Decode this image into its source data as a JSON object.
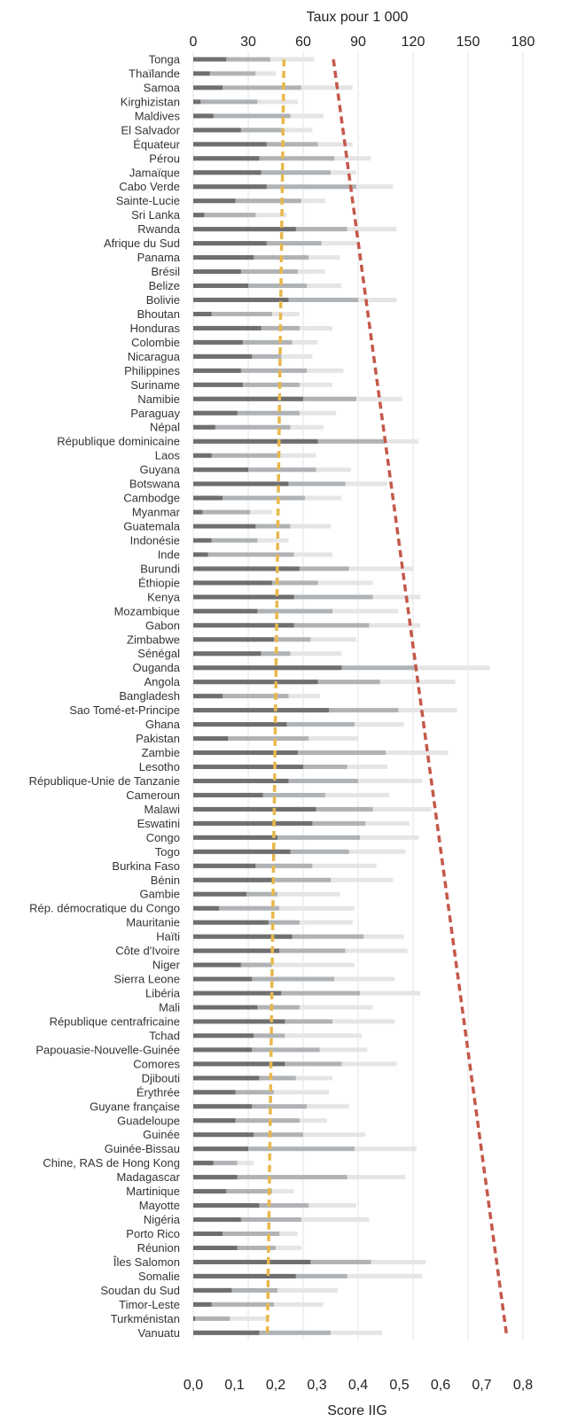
{
  "chart_data": {
    "type": "bar",
    "top_axis": {
      "title": "Taux pour 1 000",
      "ticks": [
        "0",
        "30",
        "60",
        "90",
        "120",
        "150",
        "180"
      ],
      "range": [
        0,
        180
      ]
    },
    "bottom_axis": {
      "title": "Score IIG",
      "ticks": [
        "0,0",
        "0,1",
        "0,2",
        "0,3",
        "0,4",
        "0,5",
        "0,6",
        "0,7",
        "0,8"
      ],
      "range": [
        0,
        0.8
      ]
    },
    "grid": true,
    "colors": {
      "bar_dark": "#6f6f70",
      "bar_mid": "#b0b3b6",
      "bar_light": "#e5e5e6",
      "trend_red": "#c4584a",
      "trend_yellow": "#e8b84b"
    },
    "countries": [
      {
        "name": "Tonga",
        "v": [
          18,
          42,
          66
        ]
      },
      {
        "name": "Thaïlande",
        "v": [
          9,
          34,
          45
        ]
      },
      {
        "name": "Samoa",
        "v": [
          16,
          59,
          87
        ]
      },
      {
        "name": "Kirghizistan",
        "v": [
          4,
          35,
          57
        ]
      },
      {
        "name": "Maldives",
        "v": [
          11,
          53,
          71
        ]
      },
      {
        "name": "El Salvador",
        "v": [
          26,
          49,
          65
        ]
      },
      {
        "name": "Équateur",
        "v": [
          40,
          68,
          87
        ]
      },
      {
        "name": "Pérou",
        "v": [
          36,
          77,
          97
        ]
      },
      {
        "name": "Jamaïque",
        "v": [
          37,
          75,
          89
        ]
      },
      {
        "name": "Cabo Verde",
        "v": [
          40,
          89,
          109
        ]
      },
      {
        "name": "Sainte-Lucie",
        "v": [
          23,
          59,
          72
        ]
      },
      {
        "name": "Sri Lanka",
        "v": [
          6,
          34,
          51
        ]
      },
      {
        "name": "Rwanda",
        "v": [
          56,
          84,
          111
        ]
      },
      {
        "name": "Afrique du Sud",
        "v": [
          40,
          70,
          89
        ]
      },
      {
        "name": "Panama",
        "v": [
          33,
          63,
          80
        ]
      },
      {
        "name": "Brésil",
        "v": [
          26,
          57,
          72
        ]
      },
      {
        "name": "Belize",
        "v": [
          30,
          62,
          81
        ]
      },
      {
        "name": "Bolivie",
        "v": [
          52,
          90,
          111
        ]
      },
      {
        "name": "Bhoutan",
        "v": [
          10,
          43,
          58
        ]
      },
      {
        "name": "Honduras",
        "v": [
          37,
          58,
          76
        ]
      },
      {
        "name": "Colombie",
        "v": [
          27,
          54,
          68
        ]
      },
      {
        "name": "Nicaragua",
        "v": [
          32,
          48,
          65
        ]
      },
      {
        "name": "Philippines",
        "v": [
          26,
          62,
          82
        ]
      },
      {
        "name": "Suriname",
        "v": [
          27,
          58,
          76
        ]
      },
      {
        "name": "Namibie",
        "v": [
          60,
          89,
          114
        ]
      },
      {
        "name": "Paraguay",
        "v": [
          24,
          58,
          78
        ]
      },
      {
        "name": "Népal",
        "v": [
          12,
          53,
          71
        ]
      },
      {
        "name": "République dominicaine",
        "v": [
          68,
          105,
          123
        ]
      },
      {
        "name": "Laos",
        "v": [
          10,
          46,
          67
        ]
      },
      {
        "name": "Guyana",
        "v": [
          30,
          67,
          86
        ]
      },
      {
        "name": "Botswana",
        "v": [
          52,
          83,
          106
        ]
      },
      {
        "name": "Cambodge",
        "v": [
          16,
          61,
          81
        ]
      },
      {
        "name": "Myanmar",
        "v": [
          5,
          31,
          43
        ]
      },
      {
        "name": "Guatemala",
        "v": [
          34,
          53,
          75
        ]
      },
      {
        "name": "Indonésie",
        "v": [
          10,
          35,
          52
        ]
      },
      {
        "name": "Inde",
        "v": [
          8,
          55,
          76
        ]
      },
      {
        "name": "Burundi",
        "v": [
          58,
          85,
          120
        ]
      },
      {
        "name": "Éthiopie",
        "v": [
          43,
          68,
          98
        ]
      },
      {
        "name": "Kenya",
        "v": [
          55,
          98,
          124
        ]
      },
      {
        "name": "Mozambique",
        "v": [
          35,
          76,
          112
        ]
      },
      {
        "name": "Gabon",
        "v": [
          55,
          96,
          124
        ]
      },
      {
        "name": "Zimbabwe",
        "v": [
          44,
          64,
          89
        ]
      },
      {
        "name": "Sénégal",
        "v": [
          37,
          53,
          81
        ]
      },
      {
        "name": "Ouganda",
        "v": [
          81,
          122,
          162
        ]
      },
      {
        "name": "Angola",
        "v": [
          68,
          102,
          143
        ]
      },
      {
        "name": "Bangladesh",
        "v": [
          16,
          52,
          69
        ]
      },
      {
        "name": "Sao Tomé-et-Principe",
        "v": [
          74,
          112,
          144
        ]
      },
      {
        "name": "Ghana",
        "v": [
          51,
          88,
          115
        ]
      },
      {
        "name": "Pakistan",
        "v": [
          19,
          63,
          90
        ]
      },
      {
        "name": "Zambie",
        "v": [
          57,
          105,
          139
        ]
      },
      {
        "name": "Lesotho",
        "v": [
          60,
          84,
          106
        ]
      },
      {
        "name": "République-Unie de Tanzanie",
        "v": [
          52,
          90,
          125
        ]
      },
      {
        "name": "Cameroun",
        "v": [
          38,
          72,
          107
        ]
      },
      {
        "name": "Malawi",
        "v": [
          67,
          98,
          130
        ]
      },
      {
        "name": "Eswatini",
        "v": [
          65,
          94,
          118
        ]
      },
      {
        "name": "Congo",
        "v": [
          46,
          91,
          123
        ]
      },
      {
        "name": "Togo",
        "v": [
          53,
          85,
          116
        ]
      },
      {
        "name": "Burkina Faso",
        "v": [
          34,
          65,
          100
        ]
      },
      {
        "name": "Bénin",
        "v": [
          43,
          75,
          109
        ]
      },
      {
        "name": "Gambie",
        "v": [
          29,
          46,
          80
        ]
      },
      {
        "name": "Rép. démocratique du Congo",
        "v": [
          14,
          47,
          88
        ]
      },
      {
        "name": "Mauritanie",
        "v": [
          41,
          58,
          87
        ]
      },
      {
        "name": "Haïti",
        "v": [
          54,
          93,
          115
        ]
      },
      {
        "name": "Côte d'Ivoire",
        "v": [
          47,
          83,
          117
        ]
      },
      {
        "name": "Niger",
        "v": [
          26,
          43,
          88
        ]
      },
      {
        "name": "Sierra Leone",
        "v": [
          32,
          77,
          110
        ]
      },
      {
        "name": "Libéria",
        "v": [
          48,
          91,
          124
        ]
      },
      {
        "name": "Mali",
        "v": [
          35,
          58,
          98
        ]
      },
      {
        "name": "République centrafricaine",
        "v": [
          50,
          76,
          110
        ]
      },
      {
        "name": "Tchad",
        "v": [
          33,
          50,
          92
        ]
      },
      {
        "name": "Papouasie-Nouvelle-Guinée",
        "v": [
          32,
          69,
          95
        ]
      },
      {
        "name": "Comores",
        "v": [
          50,
          81,
          111
        ]
      },
      {
        "name": "Djibouti",
        "v": [
          36,
          56,
          76
        ]
      },
      {
        "name": "Érythrée",
        "v": [
          23,
          44,
          74
        ]
      },
      {
        "name": "Guyane française",
        "v": [
          32,
          62,
          85
        ]
      },
      {
        "name": "Guadeloupe",
        "v": [
          23,
          58,
          73
        ]
      },
      {
        "name": "Guinée",
        "v": [
          33,
          60,
          94
        ]
      },
      {
        "name": "Guinée-Bissau",
        "v": [
          30,
          88,
          122
        ]
      },
      {
        "name": "Chine, RAS de Hong Kong",
        "v": [
          11,
          24,
          33
        ]
      },
      {
        "name": "Madagascar",
        "v": [
          24,
          84,
          116
        ]
      },
      {
        "name": "Martinique",
        "v": [
          18,
          43,
          55
        ]
      },
      {
        "name": "Mayotte",
        "v": [
          36,
          63,
          89
        ]
      },
      {
        "name": "Nigéria",
        "v": [
          26,
          59,
          96
        ]
      },
      {
        "name": "Porto Rico",
        "v": [
          16,
          47,
          57
        ]
      },
      {
        "name": "Réunion",
        "v": [
          24,
          45,
          59
        ]
      },
      {
        "name": "Îles Salomon",
        "v": [
          64,
          97,
          127
        ]
      },
      {
        "name": "Somalie",
        "v": [
          56,
          84,
          125
        ]
      },
      {
        "name": "Soudan du Sud",
        "v": [
          21,
          46,
          79
        ]
      },
      {
        "name": "Timor-Leste",
        "v": [
          10,
          44,
          71
        ]
      },
      {
        "name": "Turkménistan",
        "v": [
          1,
          20,
          40
        ]
      },
      {
        "name": "Vanuatu",
        "v": [
          36,
          75,
          103
        ]
      }
    ],
    "red_line": {
      "start": 0.34,
      "end": 0.76
    },
    "yellow_line": {
      "start": 0.22,
      "end": 0.18
    }
  }
}
